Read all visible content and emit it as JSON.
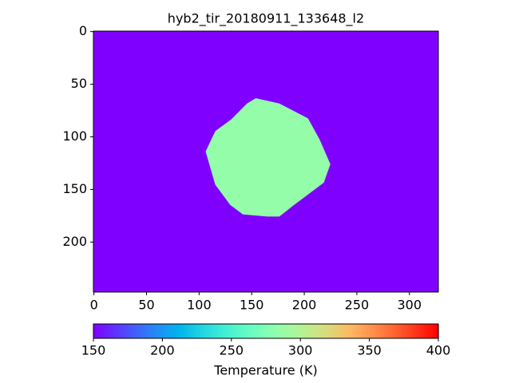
{
  "chart_data": {
    "type": "heatmap",
    "title": "hyb2_tir_20180911_133648_l2",
    "xlim": [
      -0.5,
      327.5
    ],
    "ylim": [
      247.5,
      -0.5
    ],
    "xticks": [
      0,
      50,
      100,
      150,
      200,
      250,
      300
    ],
    "yticks": [
      0,
      50,
      100,
      150,
      200
    ],
    "cmap": "rainbow",
    "regions": [
      {
        "value": 150
      },
      {
        "value": 285,
        "outline": [
          [
            154,
            64
          ],
          [
            176,
            69
          ],
          [
            203,
            83
          ],
          [
            214,
            103
          ],
          [
            224,
            126
          ],
          [
            218,
            143
          ],
          [
            190,
            164
          ],
          [
            176,
            175
          ],
          [
            165,
            175
          ],
          [
            142,
            173
          ],
          [
            130,
            164
          ],
          [
            116,
            145
          ],
          [
            107,
            114
          ],
          [
            116,
            95
          ],
          [
            131,
            84
          ],
          [
            146,
            69
          ]
        ]
      }
    ],
    "colorbar": {
      "label": "Temperature (K)",
      "lim": [
        150,
        400
      ],
      "ticks": [
        150,
        200,
        250,
        300,
        350,
        400
      ]
    }
  }
}
